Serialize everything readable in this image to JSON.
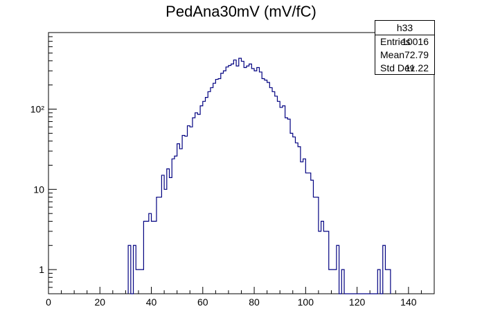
{
  "chart_data": {
    "type": "histogram",
    "title": "PedAna30mV (mV/fC)",
    "xlabel": "",
    "ylabel": "",
    "xlim": [
      0,
      150
    ],
    "ylim": [
      0.5,
      900
    ],
    "y_scale": "log",
    "bin_width": 1,
    "x_ticks": [
      0,
      20,
      40,
      60,
      80,
      100,
      120,
      140
    ],
    "x_tick_labels": [
      "0",
      "20",
      "40",
      "60",
      "80",
      "100",
      "120",
      "140"
    ],
    "y_ticks": [
      1,
      10,
      100
    ],
    "y_tick_labels": [
      "1",
      "10",
      "10²"
    ],
    "line_color": "#000080",
    "stats_box": {
      "name": "h33",
      "rows": [
        {
          "label": "Entries",
          "value": "10016"
        },
        {
          "label": "Mean",
          "value": "72.79"
        },
        {
          "label": "Std Dev",
          "value": "11.22"
        }
      ]
    },
    "bins": [
      [
        31,
        2
      ],
      [
        32,
        0
      ],
      [
        33,
        2
      ],
      [
        34,
        1
      ],
      [
        35,
        1
      ],
      [
        36,
        1
      ],
      [
        37,
        4
      ],
      [
        38,
        4
      ],
      [
        39,
        5
      ],
      [
        40,
        4
      ],
      [
        41,
        4
      ],
      [
        42,
        8
      ],
      [
        43,
        8
      ],
      [
        44,
        15
      ],
      [
        45,
        10
      ],
      [
        46,
        18
      ],
      [
        47,
        14
      ],
      [
        48,
        24
      ],
      [
        49,
        26
      ],
      [
        50,
        37
      ],
      [
        51,
        32
      ],
      [
        52,
        47
      ],
      [
        53,
        46
      ],
      [
        54,
        62
      ],
      [
        55,
        60
      ],
      [
        56,
        78
      ],
      [
        57,
        90
      ],
      [
        58,
        86
      ],
      [
        59,
        110
      ],
      [
        60,
        125
      ],
      [
        61,
        140
      ],
      [
        62,
        165
      ],
      [
        63,
        185
      ],
      [
        64,
        210
      ],
      [
        65,
        235
      ],
      [
        66,
        240
      ],
      [
        67,
        280
      ],
      [
        68,
        300
      ],
      [
        69,
        335
      ],
      [
        70,
        350
      ],
      [
        71,
        365
      ],
      [
        72,
        410
      ],
      [
        73,
        345
      ],
      [
        74,
        430
      ],
      [
        75,
        395
      ],
      [
        76,
        330
      ],
      [
        77,
        345
      ],
      [
        78,
        365
      ],
      [
        79,
        320
      ],
      [
        80,
        300
      ],
      [
        81,
        330
      ],
      [
        82,
        290
      ],
      [
        83,
        240
      ],
      [
        84,
        230
      ],
      [
        85,
        215
      ],
      [
        86,
        185
      ],
      [
        87,
        165
      ],
      [
        88,
        145
      ],
      [
        89,
        125
      ],
      [
        90,
        105
      ],
      [
        91,
        110
      ],
      [
        92,
        78
      ],
      [
        93,
        75
      ],
      [
        94,
        50
      ],
      [
        95,
        45
      ],
      [
        96,
        38
      ],
      [
        97,
        34
      ],
      [
        98,
        22
      ],
      [
        99,
        24
      ],
      [
        100,
        16
      ],
      [
        101,
        16
      ],
      [
        102,
        13
      ],
      [
        103,
        8
      ],
      [
        104,
        8
      ],
      [
        105,
        3
      ],
      [
        106,
        4
      ],
      [
        107,
        3
      ],
      [
        108,
        3
      ],
      [
        109,
        1
      ],
      [
        110,
        1
      ],
      [
        111,
        1
      ],
      [
        112,
        2
      ],
      [
        113,
        0
      ],
      [
        114,
        1
      ],
      [
        115,
        0
      ],
      [
        116,
        0
      ],
      [
        117,
        0
      ],
      [
        118,
        0
      ],
      [
        119,
        0
      ],
      [
        120,
        0
      ],
      [
        121,
        0
      ],
      [
        122,
        0
      ],
      [
        123,
        0
      ],
      [
        124,
        0
      ],
      [
        125,
        0
      ],
      [
        126,
        0
      ],
      [
        127,
        0
      ],
      [
        128,
        1
      ],
      [
        129,
        0
      ],
      [
        130,
        2
      ],
      [
        131,
        1
      ],
      [
        132,
        1
      ]
    ]
  }
}
